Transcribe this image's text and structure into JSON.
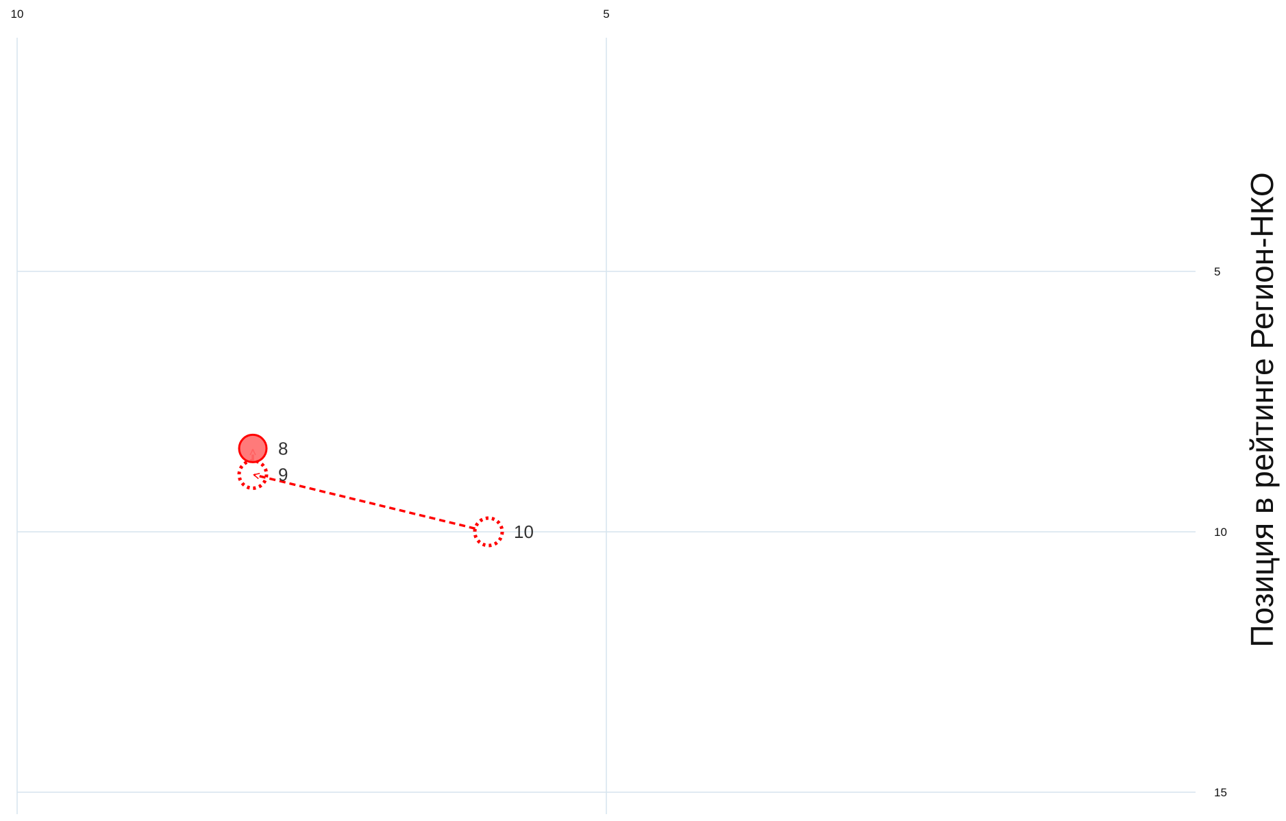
{
  "chart_data": {
    "type": "scatter",
    "title": "",
    "xlabel": "",
    "ylabel": "Позиция в рейтинге Регион-НКО",
    "x_axis": {
      "reversed": true,
      "range": [
        10,
        0
      ],
      "ticks": [
        "10",
        "5"
      ],
      "tick_values": [
        10,
        5
      ],
      "position": "top"
    },
    "y_axis": {
      "reversed": true,
      "range": [
        1,
        15
      ],
      "ticks": [
        "5",
        "10",
        "15"
      ],
      "tick_values": [
        5,
        10,
        15
      ],
      "position": "right"
    },
    "grid": true,
    "points": [
      {
        "label": "10",
        "x": 6,
        "y": 10,
        "style": "dotted-hollow"
      },
      {
        "label": "9",
        "x": 8,
        "y": 8.9,
        "style": "dotted-hollow"
      },
      {
        "label": "8",
        "x": 8,
        "y": 8.4,
        "style": "filled"
      }
    ],
    "path_style": "dashed-arrows",
    "colors": {
      "marker": "#ff0000",
      "marker_fill": "#ff6b6b",
      "grid": "#d6e4ee",
      "axis": "#c9dbe8"
    }
  }
}
